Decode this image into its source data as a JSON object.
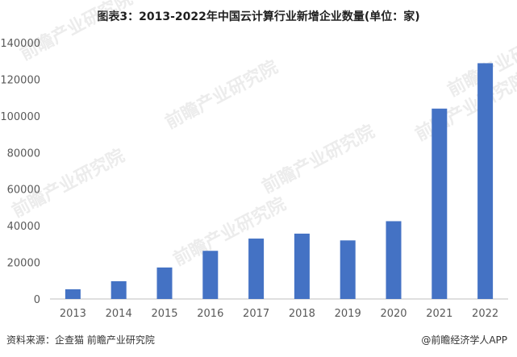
{
  "title": "图表3：2013-2022年中国云计算行业新增企业数量(单位：家)",
  "source": "资料来源：企查猫 前瞻产业研究院",
  "brand": "@前瞻经济学人APP",
  "watermark": "前瞻产业研究院",
  "colors": {
    "bar": "#4472C4",
    "axis": "#bfbfbf"
  },
  "chart_data": {
    "type": "bar",
    "categories": [
      "2013",
      "2014",
      "2015",
      "2016",
      "2017",
      "2018",
      "2019",
      "2020",
      "2021",
      "2022"
    ],
    "values": [
      5300,
      9700,
      17200,
      26300,
      33000,
      35700,
      32000,
      42500,
      104000,
      128800
    ],
    "ylim": [
      0,
      140000
    ],
    "yticks": [
      0,
      20000,
      40000,
      60000,
      80000,
      100000,
      120000,
      140000
    ],
    "grid": false
  }
}
